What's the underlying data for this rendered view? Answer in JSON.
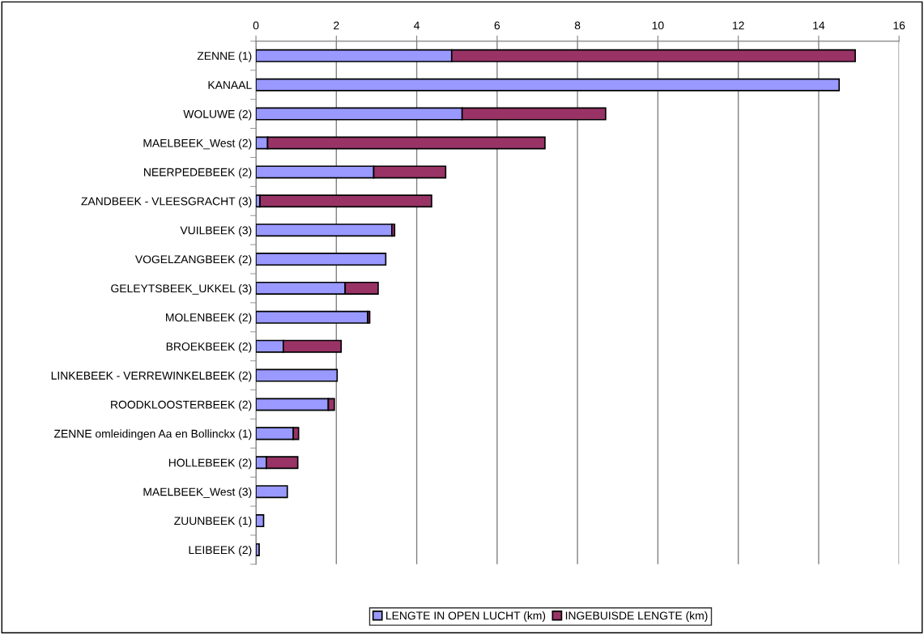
{
  "chart_data": {
    "type": "bar",
    "orientation": "horizontal",
    "stacked": true,
    "categories": [
      "ZENNE (1)",
      "KANAAL",
      "WOLUWE (2)",
      "MAELBEEK_West (2)",
      "NEERPEDEBEEK (2)",
      "ZANDBEEK - VLEESGRACHT (3)",
      "VUILBEEK (3)",
      "VOGELZANGBEEK (2)",
      "GELEYTSBEEK_UKKEL (3)",
      "MOLENBEEK (2)",
      "BROEKBEEK (2)",
      "LINKEBEEK - VERREWINKELBEEK (2)",
      "ROODKLOOSTERBEEK (2)",
      "ZENNE omleidingen Aa en Bollinckx (1)",
      "HOLLEBEEK (2)",
      "MAELBEEK_West (3)",
      "ZUUNBEEK (1)",
      "LEIBEEK (2)"
    ],
    "series": [
      {
        "name": "LENGTE IN OPEN LUCHT (km)",
        "color": "#9999ff",
        "values": [
          4.87,
          14.51,
          5.13,
          0.29,
          2.93,
          0.1,
          3.38,
          3.23,
          2.22,
          2.78,
          0.68,
          2.02,
          1.8,
          0.93,
          0.26,
          0.78,
          0.19,
          0.08
        ]
      },
      {
        "name": "INGEBUISDE LENGTE (km)",
        "color": "#993366",
        "values": [
          10.04,
          null,
          3.57,
          6.9,
          1.79,
          4.27,
          0.07,
          null,
          0.82,
          0.05,
          1.44,
          null,
          0.15,
          0.13,
          0.78,
          null,
          null,
          null
        ]
      }
    ],
    "xlim": [
      0,
      16
    ],
    "xticks": [
      0,
      2,
      4,
      6,
      8,
      10,
      12,
      14,
      16
    ],
    "grid": "x",
    "legend": "bottom"
  }
}
